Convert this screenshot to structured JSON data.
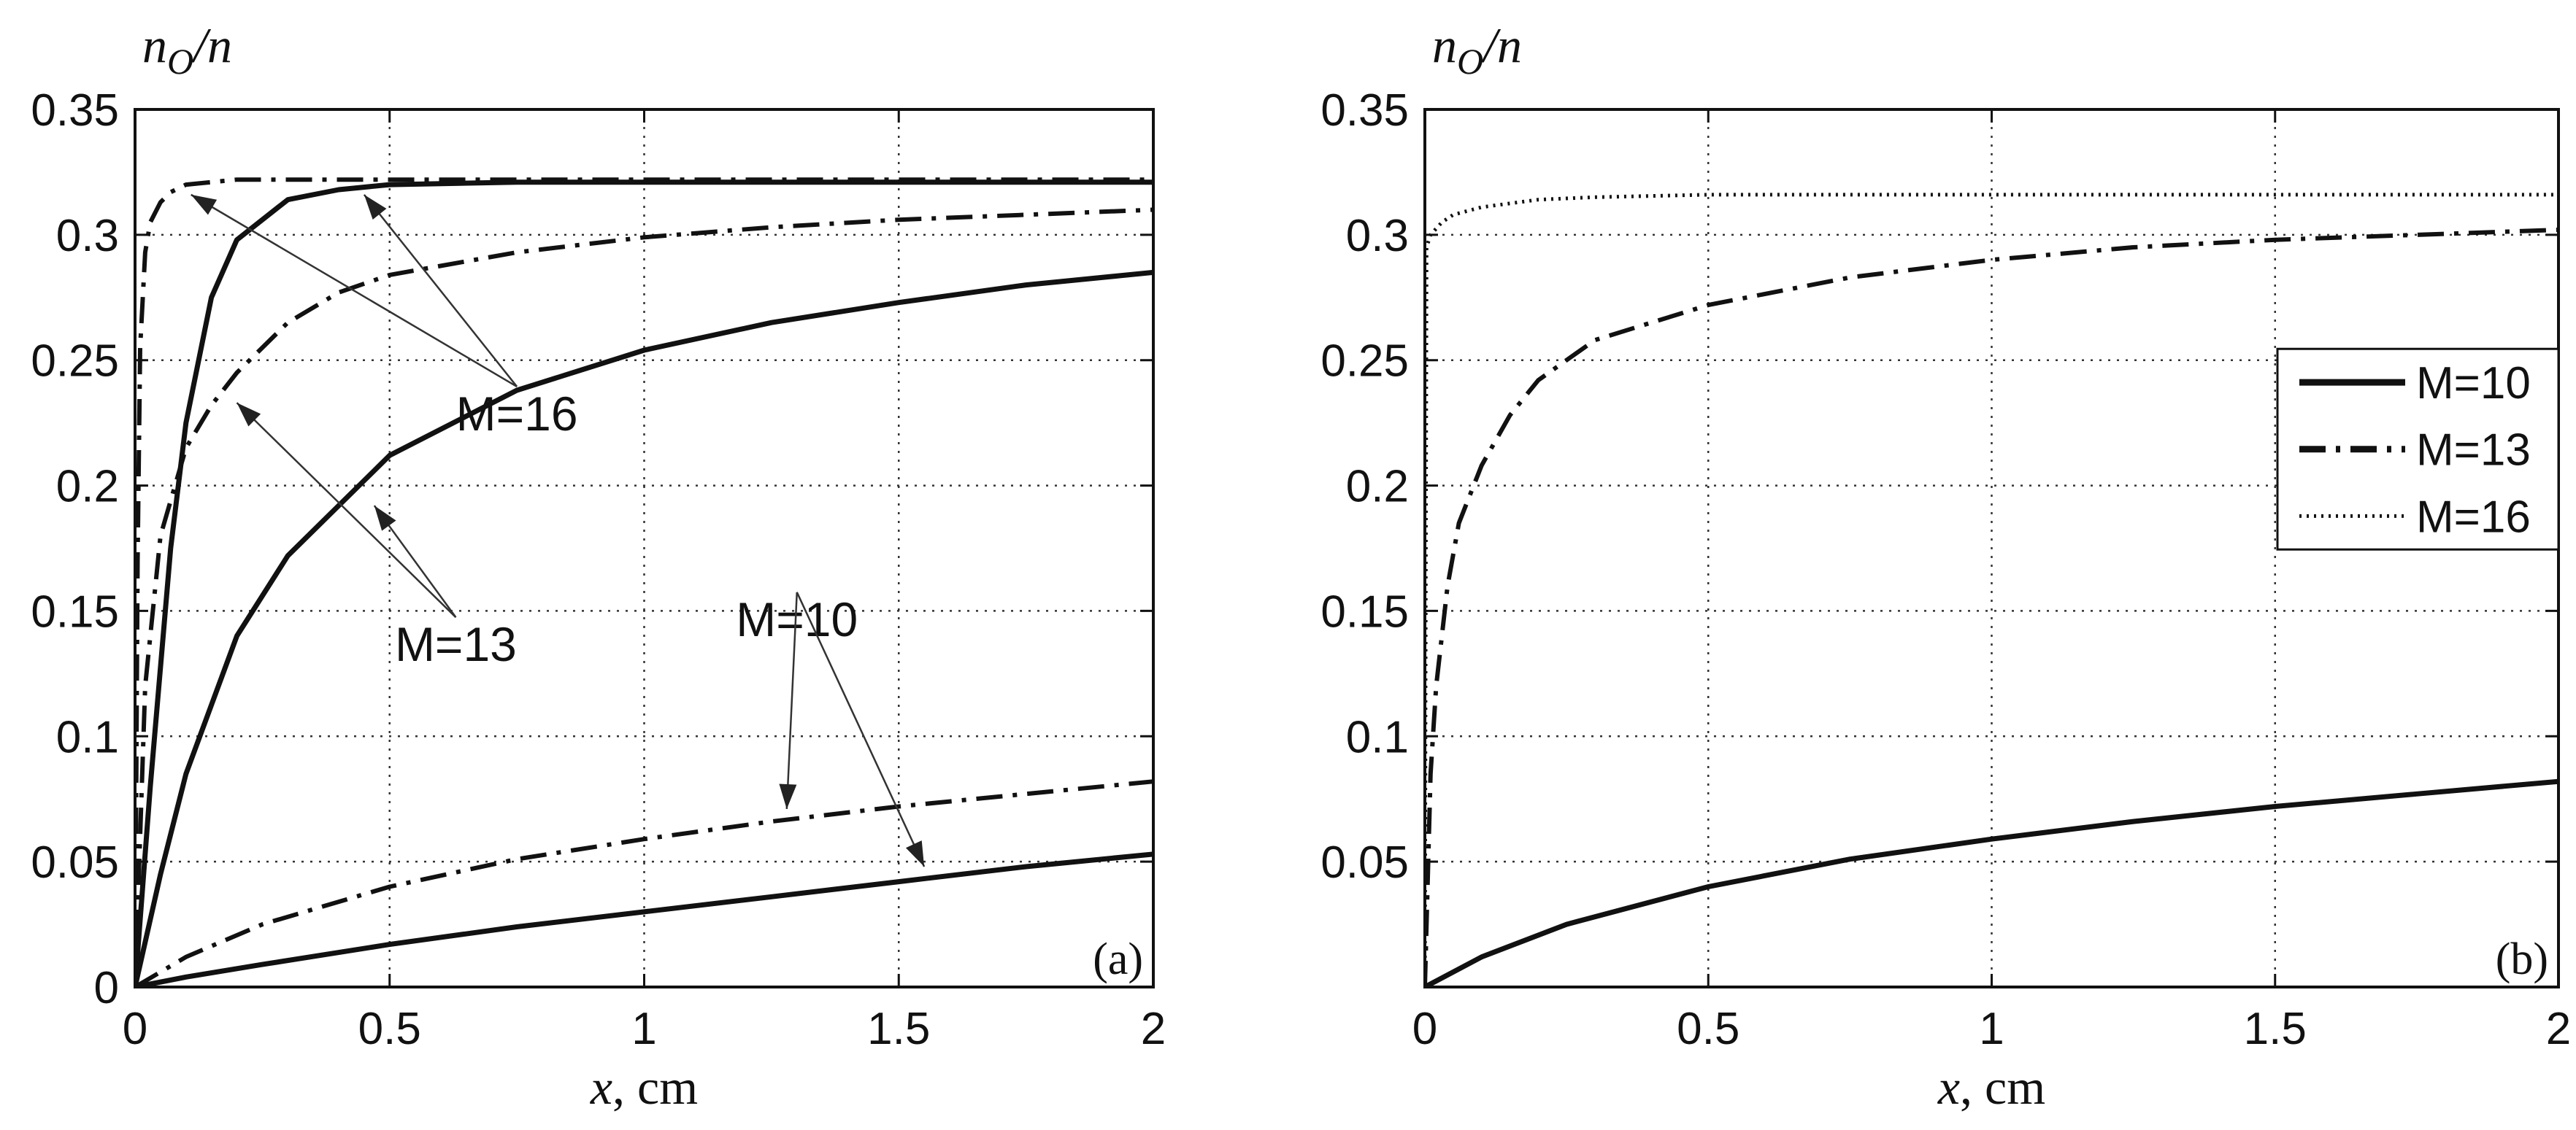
{
  "chart_data": [
    {
      "type": "line",
      "panel_label": "(a)",
      "ylabel": {
        "base": "n",
        "sub": "O",
        "rest": "/n"
      },
      "xlabel": {
        "var": "x",
        "unit": ", cm"
      },
      "xlim": [
        0,
        2
      ],
      "ylim": [
        0,
        0.35
      ],
      "xticks": [
        0,
        0.5,
        1,
        1.5,
        2
      ],
      "xtick_labels": [
        "0",
        "0.5",
        "1",
        "1.5",
        "2"
      ],
      "yticks": [
        0,
        0.05,
        0.1,
        0.15,
        0.2,
        0.25,
        0.3,
        0.35
      ],
      "ytick_labels": [
        "0",
        "0.05",
        "0.1",
        "0.15",
        "0.2",
        "0.25",
        "0.3",
        "0.35"
      ],
      "grid": true,
      "series": [
        {
          "name": "M=10 solid",
          "style": "solid",
          "x": [
            0,
            0.1,
            0.25,
            0.5,
            0.75,
            1.0,
            1.25,
            1.5,
            1.75,
            2.0
          ],
          "values": [
            0,
            0.004,
            0.009,
            0.017,
            0.024,
            0.03,
            0.036,
            0.042,
            0.048,
            0.053
          ]
        },
        {
          "name": "M=10 dash-dot",
          "style": "dashdot",
          "x": [
            0,
            0.1,
            0.25,
            0.5,
            0.75,
            1.0,
            1.25,
            1.5,
            1.75,
            2.0
          ],
          "values": [
            0,
            0.012,
            0.025,
            0.04,
            0.051,
            0.059,
            0.066,
            0.072,
            0.077,
            0.082
          ]
        },
        {
          "name": "M=13 solid",
          "style": "solid",
          "x": [
            0,
            0.05,
            0.1,
            0.2,
            0.3,
            0.5,
            0.75,
            1.0,
            1.25,
            1.5,
            1.75,
            2.0
          ],
          "values": [
            0,
            0.045,
            0.085,
            0.14,
            0.172,
            0.212,
            0.238,
            0.254,
            0.265,
            0.273,
            0.28,
            0.285
          ]
        },
        {
          "name": "M=13 dash-dot",
          "style": "dashdot",
          "x": [
            0,
            0.02,
            0.05,
            0.1,
            0.15,
            0.2,
            0.3,
            0.4,
            0.5,
            0.75,
            1.0,
            1.25,
            1.5,
            1.75,
            2.0
          ],
          "values": [
            0,
            0.12,
            0.18,
            0.215,
            0.232,
            0.245,
            0.265,
            0.277,
            0.284,
            0.293,
            0.299,
            0.303,
            0.306,
            0.308,
            0.31
          ]
        },
        {
          "name": "M=16 solid",
          "style": "solid",
          "x": [
            0,
            0.03,
            0.07,
            0.1,
            0.15,
            0.2,
            0.3,
            0.4,
            0.5,
            0.75,
            1.0,
            1.5,
            2.0
          ],
          "values": [
            0,
            0.08,
            0.175,
            0.225,
            0.275,
            0.298,
            0.314,
            0.318,
            0.32,
            0.321,
            0.321,
            0.321,
            0.321
          ]
        },
        {
          "name": "M=16 dash-dot",
          "style": "dashdot",
          "x": [
            0,
            0.005,
            0.01,
            0.02,
            0.03,
            0.05,
            0.07,
            0.1,
            0.15,
            0.2,
            0.3,
            0.5,
            1.0,
            2.0
          ],
          "values": [
            0,
            0.17,
            0.255,
            0.293,
            0.305,
            0.313,
            0.317,
            0.32,
            0.321,
            0.322,
            0.322,
            0.322,
            0.322,
            0.322
          ]
        }
      ],
      "annotations": [
        {
          "text": "M=16",
          "at": [
            0.75,
            0.222
          ],
          "arrows_to": [
            [
              0.11,
              0.316
            ],
            [
              0.45,
              0.316
            ]
          ]
        },
        {
          "text": "M=13",
          "at": [
            0.63,
            0.13
          ],
          "arrows_to": [
            [
              0.2,
              0.233
            ],
            [
              0.47,
              0.192
            ]
          ]
        },
        {
          "text": "M=10",
          "at": [
            1.3,
            0.14
          ],
          "arrows_to": [
            [
              1.28,
              0.071
            ],
            [
              1.55,
              0.048
            ]
          ]
        }
      ]
    },
    {
      "type": "line",
      "panel_label": "(b)",
      "ylabel": {
        "base": "n",
        "sub": "O",
        "rest": "/n"
      },
      "xlabel": {
        "var": "x",
        "unit": ", cm"
      },
      "xlim": [
        0,
        2
      ],
      "ylim": [
        0,
        0.35
      ],
      "xticks": [
        0,
        0.5,
        1,
        1.5,
        2
      ],
      "xtick_labels": [
        "0",
        "0.5",
        "1",
        "1.5",
        "2"
      ],
      "yticks": [
        0.05,
        0.1,
        0.15,
        0.2,
        0.25,
        0.3,
        0.35
      ],
      "ytick_labels": [
        "0.05",
        "0.1",
        "0.15",
        "0.2",
        "0.25",
        "0.3",
        "0.35"
      ],
      "grid": true,
      "legend": {
        "placement": "right",
        "entries": [
          "M=10",
          "M=13",
          "M=16"
        ]
      },
      "series": [
        {
          "name": "M=10",
          "style": "solid",
          "x": [
            0,
            0.1,
            0.25,
            0.5,
            0.75,
            1.0,
            1.25,
            1.5,
            1.75,
            2.0
          ],
          "values": [
            0,
            0.012,
            0.025,
            0.04,
            0.051,
            0.059,
            0.066,
            0.072,
            0.077,
            0.082
          ]
        },
        {
          "name": "M=13",
          "style": "dashdot",
          "x": [
            0,
            0.01,
            0.02,
            0.04,
            0.06,
            0.1,
            0.15,
            0.2,
            0.3,
            0.5,
            0.75,
            1.0,
            1.25,
            1.5,
            1.75,
            2.0
          ],
          "values": [
            0,
            0.085,
            0.12,
            0.16,
            0.185,
            0.208,
            0.228,
            0.242,
            0.258,
            0.272,
            0.283,
            0.29,
            0.295,
            0.298,
            0.3,
            0.302
          ]
        },
        {
          "name": "M=16",
          "style": "dotted",
          "x": [
            0,
            0.003,
            0.01,
            0.03,
            0.05,
            0.1,
            0.2,
            0.3,
            0.5,
            1.0,
            1.5,
            2.0
          ],
          "values": [
            0,
            0.295,
            0.3,
            0.305,
            0.308,
            0.311,
            0.314,
            0.315,
            0.316,
            0.316,
            0.316,
            0.316
          ]
        }
      ]
    }
  ]
}
